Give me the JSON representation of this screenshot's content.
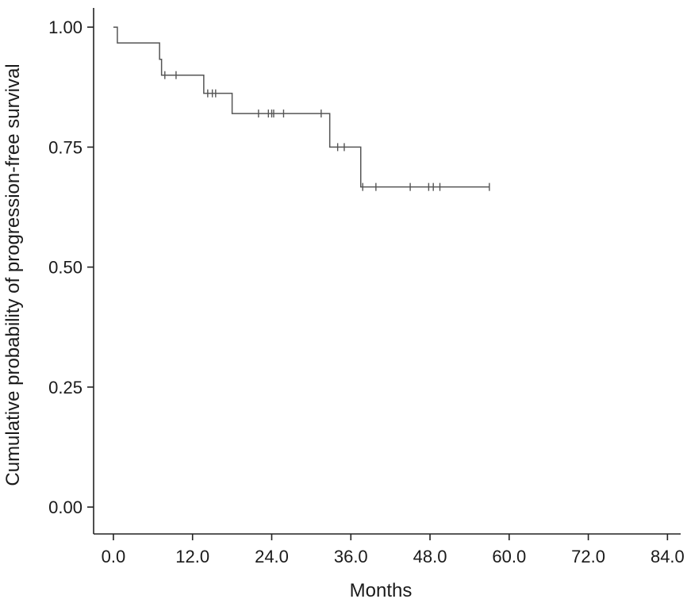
{
  "chart_data": {
    "type": "line",
    "subtype": "kaplan-meier",
    "title": "",
    "xlabel": "Months",
    "ylabel": "Cumulative probability of progression-free survival",
    "xlim": [
      -3,
      86
    ],
    "ylim": [
      -0.056,
      1.04
    ],
    "x_ticks": [
      0,
      12,
      24,
      36,
      48,
      60,
      72,
      84
    ],
    "x_tick_labels": [
      "0.0",
      "12.0",
      "24.0",
      "36.0",
      "48.0",
      "60.0",
      "72.0",
      "84.0"
    ],
    "y_ticks": [
      0.0,
      0.25,
      0.5,
      0.75,
      1.0
    ],
    "y_tick_labels": [
      "0.00",
      "0.25",
      "0.50",
      "0.75",
      "1.00"
    ],
    "grid": false,
    "legend": "none",
    "line_color": "#555555",
    "series": [
      {
        "steps": [
          {
            "x": 0.0,
            "y": 1.0
          },
          {
            "x": 0.6,
            "y": 0.967
          },
          {
            "x": 7.0,
            "y": 0.933
          },
          {
            "x": 7.3,
            "y": 0.9
          },
          {
            "x": 13.7,
            "y": 0.862
          },
          {
            "x": 18.0,
            "y": 0.82
          },
          {
            "x": 32.8,
            "y": 0.75
          },
          {
            "x": 37.5,
            "y": 0.667
          }
        ],
        "end_x": 57.0,
        "censored": [
          {
            "x": 7.8,
            "y": 0.9
          },
          {
            "x": 9.5,
            "y": 0.9
          },
          {
            "x": 14.3,
            "y": 0.862
          },
          {
            "x": 15.0,
            "y": 0.862
          },
          {
            "x": 15.5,
            "y": 0.862
          },
          {
            "x": 22.0,
            "y": 0.82
          },
          {
            "x": 23.5,
            "y": 0.82
          },
          {
            "x": 24.0,
            "y": 0.82
          },
          {
            "x": 24.3,
            "y": 0.82
          },
          {
            "x": 25.8,
            "y": 0.82
          },
          {
            "x": 31.5,
            "y": 0.82
          },
          {
            "x": 34.0,
            "y": 0.75
          },
          {
            "x": 35.0,
            "y": 0.75
          },
          {
            "x": 37.8,
            "y": 0.667
          },
          {
            "x": 39.8,
            "y": 0.667
          },
          {
            "x": 45.0,
            "y": 0.667
          },
          {
            "x": 47.8,
            "y": 0.667
          },
          {
            "x": 48.5,
            "y": 0.667
          },
          {
            "x": 49.5,
            "y": 0.667
          },
          {
            "x": 57.0,
            "y": 0.667
          }
        ]
      }
    ]
  }
}
